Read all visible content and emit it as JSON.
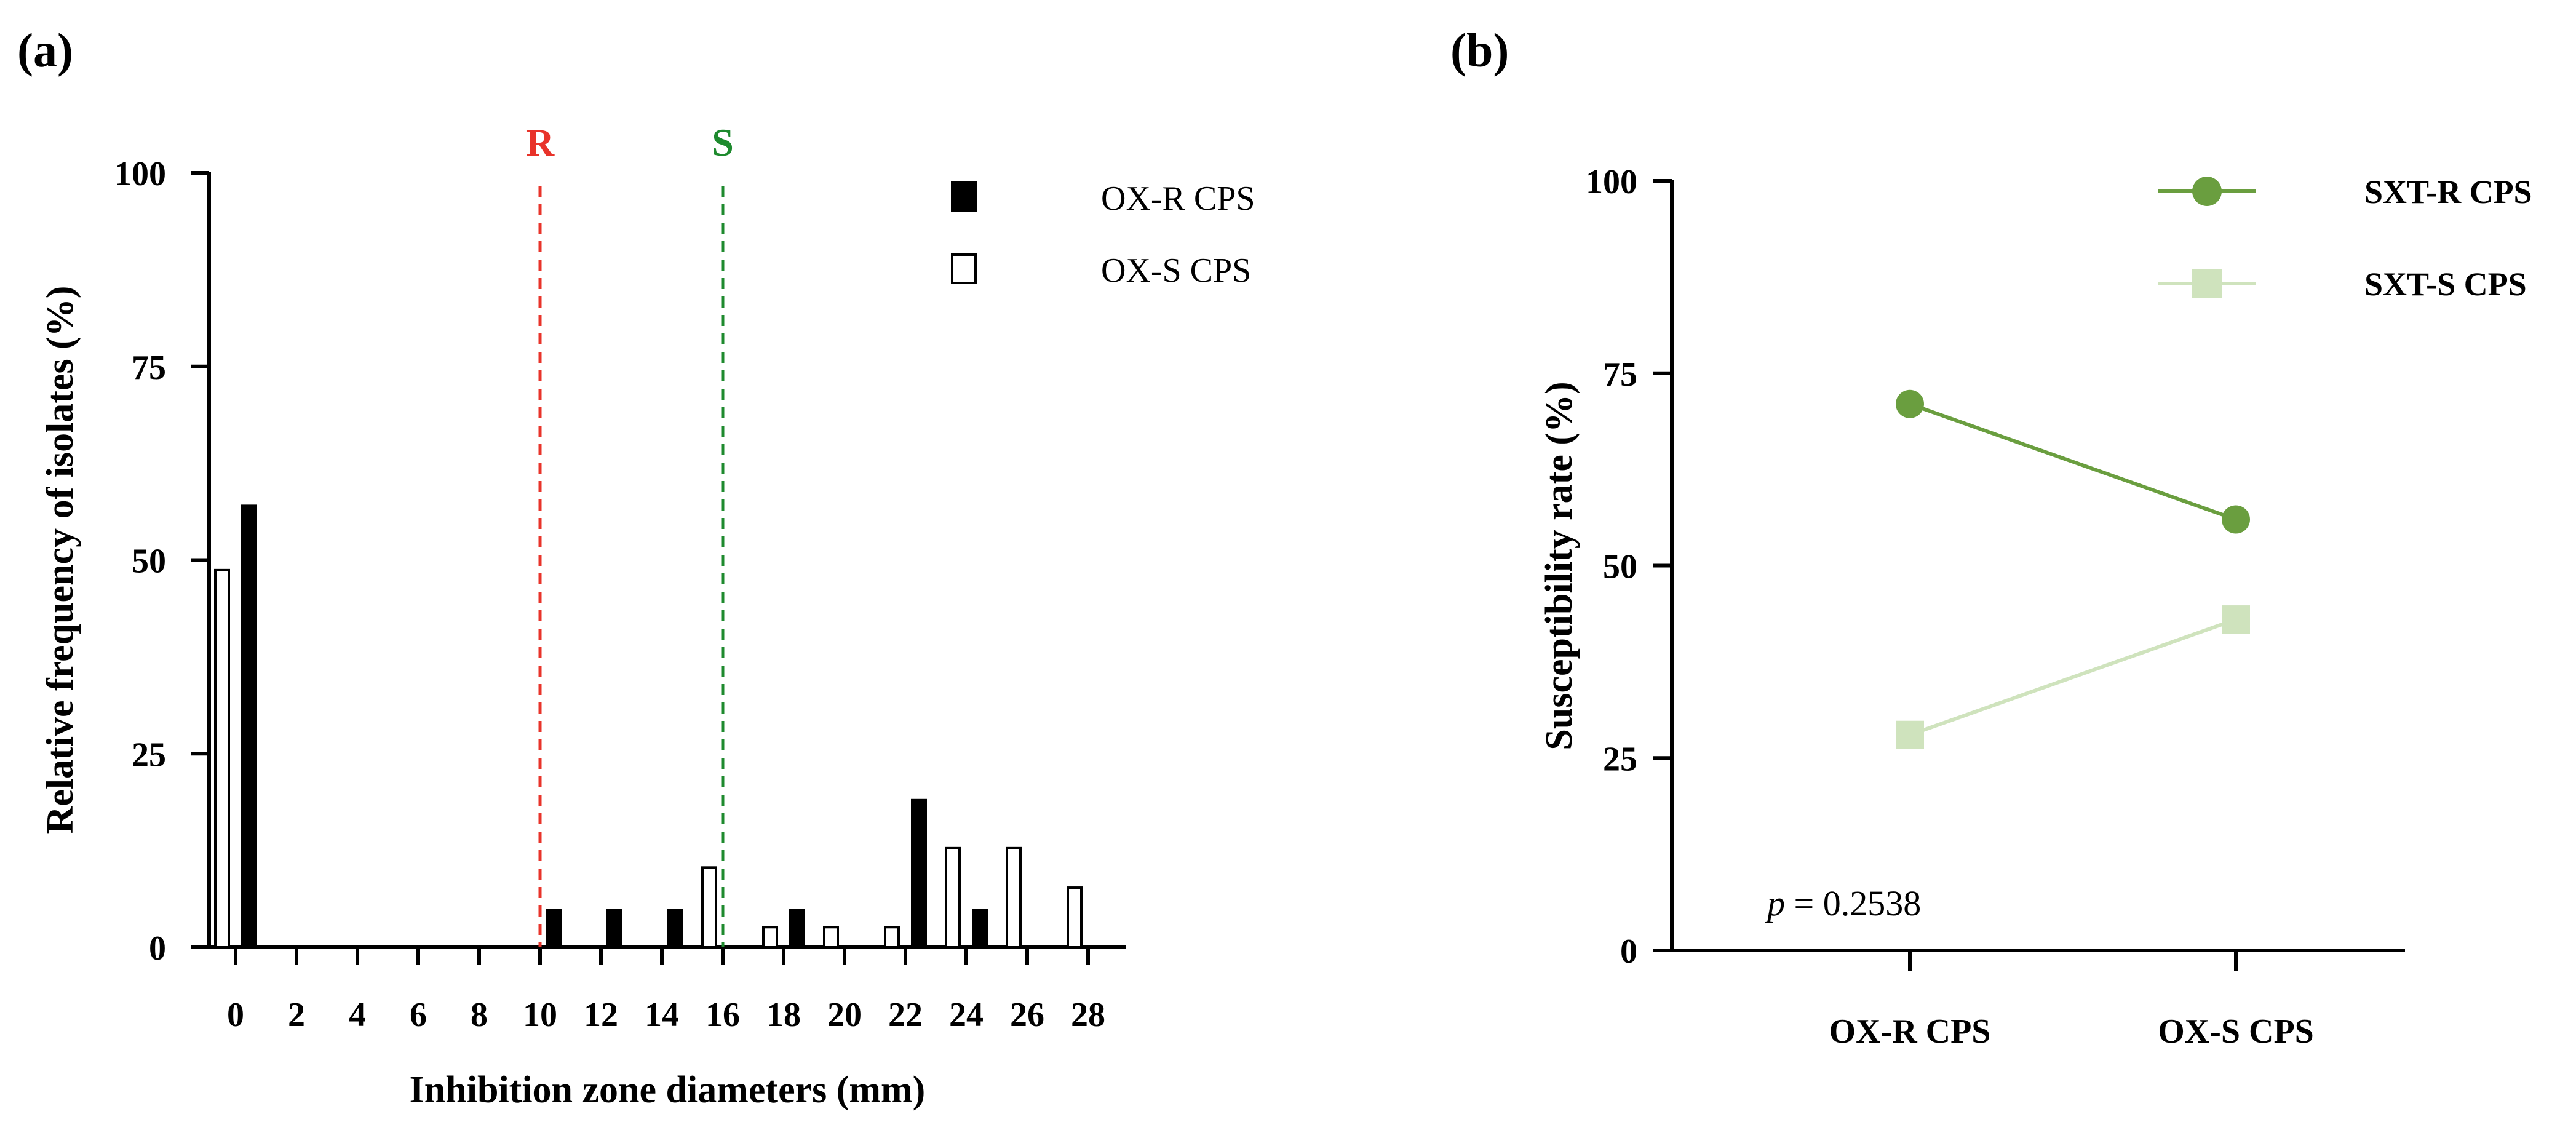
{
  "chart_data": [
    {
      "panel": "(a)",
      "type": "bar",
      "xlabel": "Inhibition zone diameters (mm)",
      "ylabel": "Relative frequency of isolates (%)",
      "ylim": [
        0,
        100
      ],
      "yticks": [
        "0",
        "25",
        "50",
        "75",
        "100"
      ],
      "xticks": [
        "0",
        "2",
        "4",
        "6",
        "8",
        "10",
        "12",
        "14",
        "16",
        "18",
        "20",
        "22",
        "24",
        "26",
        "28"
      ],
      "series": [
        {
          "name": "OX-R CPS",
          "fill": "#000000",
          "x": [
            0,
            10,
            12,
            14,
            18,
            22,
            24
          ],
          "values": [
            57,
            4.8,
            4.8,
            4.8,
            4.8,
            19,
            4.8
          ]
        },
        {
          "name": "OX-S CPS",
          "fill": "#ffffff",
          "x": [
            0,
            16,
            18,
            20,
            22,
            24,
            26,
            28
          ],
          "values": [
            48.7,
            10.3,
            2.6,
            2.6,
            2.6,
            12.8,
            12.8,
            7.7
          ]
        }
      ],
      "breakpoints": [
        {
          "label": "R",
          "x": 10,
          "color": "#e8332a"
        },
        {
          "label": "S",
          "x": 16,
          "color": "#1e8a2e"
        }
      ]
    },
    {
      "panel": "(b)",
      "type": "line",
      "ylabel": "Susceptibility rate (%)",
      "ylim": [
        0,
        100
      ],
      "yticks": [
        "0",
        "25",
        "50",
        "75",
        "100"
      ],
      "categories": [
        "OX-R CPS",
        "OX-S CPS"
      ],
      "series": [
        {
          "name": "SXT-R CPS",
          "marker": "circle",
          "color": "#6a9e3f",
          "values": [
            71,
            56
          ]
        },
        {
          "name": "SXT-S CPS",
          "marker": "square",
          "color": "#cfe3bd",
          "values": [
            28,
            43
          ]
        }
      ],
      "annotation": {
        "italic": "p",
        "text": " = 0.2538"
      }
    }
  ]
}
